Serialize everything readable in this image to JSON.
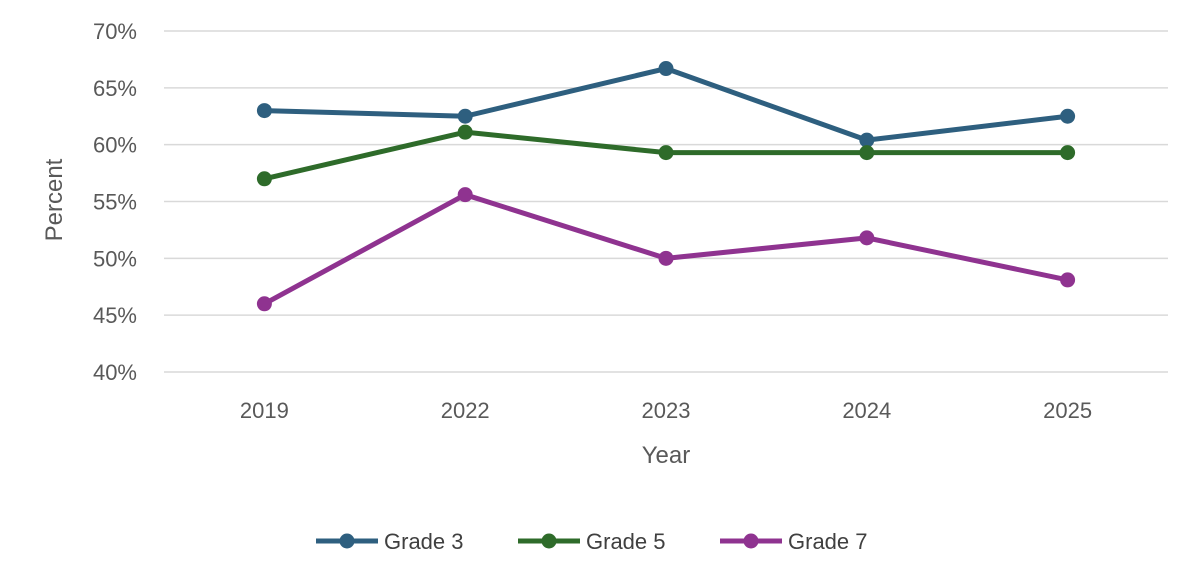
{
  "chart_data": {
    "type": "line",
    "title": "",
    "xlabel": "Year",
    "ylabel": "Percent",
    "categories": [
      "2019",
      "2022",
      "2023",
      "2024",
      "2025"
    ],
    "ylim": [
      40,
      70
    ],
    "yticks": [
      "40%",
      "45%",
      "50%",
      "55%",
      "60%",
      "65%",
      "70%"
    ],
    "grid": true,
    "legend_position": "bottom",
    "series": [
      {
        "name": "Grade 3",
        "color": "#2E5F7F",
        "values": [
          63.0,
          62.5,
          66.7,
          60.4,
          62.5
        ]
      },
      {
        "name": "Grade 5",
        "color": "#2E6B2A",
        "values": [
          57.0,
          61.1,
          59.3,
          59.3,
          59.3
        ]
      },
      {
        "name": "Grade 7",
        "color": "#8F3390",
        "values": [
          46.0,
          55.6,
          50.0,
          51.8,
          48.1
        ]
      }
    ]
  }
}
